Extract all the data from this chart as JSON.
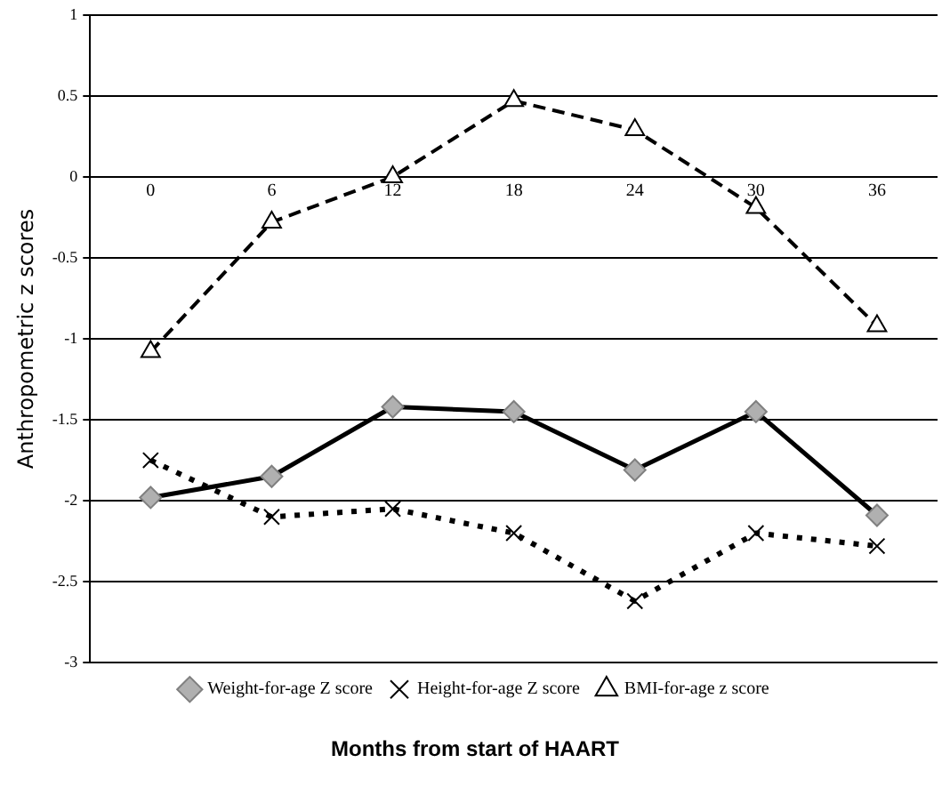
{
  "chart_data": {
    "type": "line",
    "xlabel": "Months from start of HAART",
    "ylabel": "Anthropometric z scores",
    "categories": [
      "0",
      "6",
      "12",
      "18",
      "24",
      "30",
      "36"
    ],
    "series": [
      {
        "name": "Weight-for-age Z score",
        "color": "#000000",
        "marker": "diamond",
        "line_style": "solid",
        "values": [
          -1.98,
          -1.85,
          -1.42,
          -1.45,
          -1.81,
          -1.45,
          -2.09
        ]
      },
      {
        "name": "Height-for-age Z score",
        "color": "#000000",
        "marker": "cross",
        "line_style": "dotted",
        "values": [
          -1.75,
          -2.1,
          -2.05,
          -2.2,
          -2.62,
          -2.2,
          -2.28
        ]
      },
      {
        "name": "BMI-for-age z score",
        "color": "#000000",
        "marker": "triangle",
        "line_style": "dashed",
        "values": [
          -1.08,
          -0.28,
          0.0,
          0.47,
          0.29,
          -0.19,
          -0.92
        ]
      }
    ],
    "ylim": [
      -3,
      1
    ],
    "yticks": [
      -3,
      -2.5,
      -2,
      -1.5,
      -1,
      -0.5,
      0,
      0.5,
      1
    ],
    "grid": "y",
    "legend": "bottom"
  }
}
